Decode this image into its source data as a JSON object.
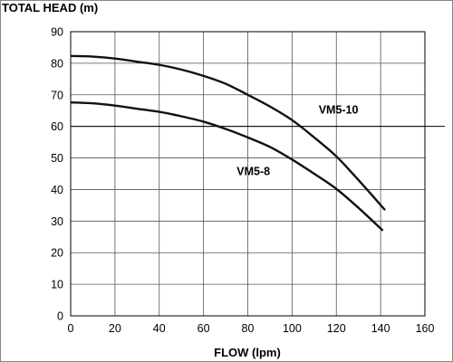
{
  "chart_data": {
    "type": "line",
    "title": "",
    "ylabel": "TOTAL HEAD (m)",
    "xlabel": "FLOW (lpm)",
    "xlim": [
      0,
      160
    ],
    "ylim": [
      0,
      90
    ],
    "xticks": [
      "0",
      "20",
      "40",
      "60",
      "80",
      "100",
      "120",
      "140",
      "160"
    ],
    "yticks": [
      "0",
      "10",
      "20",
      "30",
      "40",
      "50",
      "60",
      "70",
      "80",
      "90"
    ],
    "grid": true,
    "highlight_line_y": 60,
    "series": [
      {
        "name": "VM5-10",
        "x": [
          0,
          10,
          20,
          30,
          40,
          50,
          60,
          70,
          80,
          90,
          100,
          110,
          120,
          130,
          142
        ],
        "y": [
          82.3,
          82.1,
          81.5,
          80.5,
          79.5,
          78,
          76,
          73.5,
          70,
          66.3,
          62,
          56.5,
          50.5,
          43,
          33.5
        ]
      },
      {
        "name": "VM5-8",
        "x": [
          0,
          10,
          20,
          30,
          40,
          50,
          60,
          70,
          80,
          90,
          100,
          110,
          120,
          130,
          141
        ],
        "y": [
          67.6,
          67.3,
          66.6,
          65.6,
          64.6,
          63.2,
          61.5,
          59.2,
          56.5,
          53.5,
          49.5,
          45,
          40.2,
          34.2,
          27
        ]
      }
    ],
    "annotations": [
      {
        "text": "VM5-10",
        "x": 112,
        "y": 64
      },
      {
        "text": "VM5-8",
        "x": 75,
        "y": 44.5
      }
    ]
  }
}
